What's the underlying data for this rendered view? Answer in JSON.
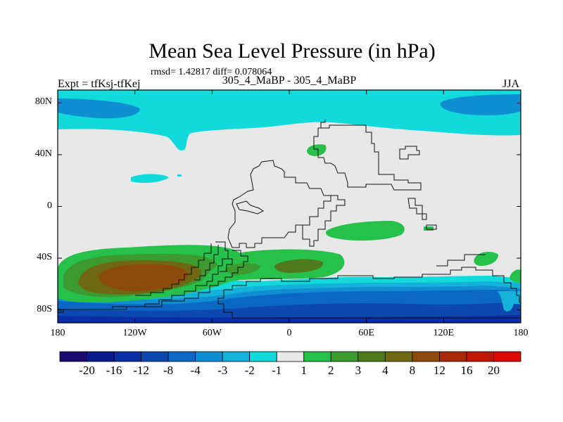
{
  "chart_data": {
    "type": "heatmap",
    "title": "Mean Sea Level Pressure (in hPa)",
    "stats_label": "rmsd= 1.42817 diff= 0.078064",
    "experiment_label": "Expt = tfKsj-tfKej",
    "subtitle": "305_4_MaBP - 305_4_MaBP",
    "season": "JJA",
    "x_ticks": [
      "180",
      "120W",
      "60W",
      "0",
      "60E",
      "120E",
      "180"
    ],
    "x_tick_values": [
      -180,
      -120,
      -60,
      0,
      60,
      120,
      180
    ],
    "y_ticks": [
      "80N",
      "40N",
      "0",
      "40S",
      "80S"
    ],
    "y_tick_values": [
      80,
      40,
      0,
      -40,
      -80
    ],
    "xlim": [
      -180,
      180
    ],
    "ylim": [
      -90,
      90
    ],
    "colorbar": {
      "levels": [
        "-20",
        "-16",
        "-12",
        "-8",
        "-4",
        "-3",
        "-2",
        "-1",
        "1",
        "2",
        "3",
        "4",
        "8",
        "12",
        "16",
        "20"
      ],
      "colors": [
        "#1a0a6e",
        "#0a1a8c",
        "#0a2ea6",
        "#0c48b0",
        "#0b66c4",
        "#0f8ed2",
        "#14b2d8",
        "#12dada",
        "#e8e8e8",
        "#26c04a",
        "#3c9a30",
        "#4e7a1c",
        "#6e6812",
        "#8c4a0c",
        "#a62a08",
        "#c01606",
        "#dc0a04"
      ]
    },
    "fields": [
      {
        "name": "north polar band",
        "level_range": "-2 to -1",
        "region": "50N-90N, all longitudes"
      },
      {
        "name": "arctic lows",
        "level_range": "-3 to -2",
        "region": "near 80N at 180-120W and 140E-180"
      },
      {
        "name": "southern ocean trough",
        "level_range": "-12 to -2",
        "region": "55S-90S, all longitudes"
      },
      {
        "name": "south pacific high",
        "level_range": "2 to 12",
        "region": "30S-60S, 180-60W"
      },
      {
        "name": "south atlantic high",
        "level_range": "2 to 4",
        "region": "35S-55S, 60W-40E"
      },
      {
        "name": "northern midlatitude positive",
        "level_range": "1 to 2",
        "region": "40N-50N, 20E-40E"
      },
      {
        "name": "tropical indian positive",
        "level_range": "1 to 2",
        "region": "5S-15S, 30E-100E"
      },
      {
        "name": "southwest pacific positive",
        "level_range": "1 to 2",
        "region": "30S-40S, 140E-160E"
      }
    ]
  }
}
